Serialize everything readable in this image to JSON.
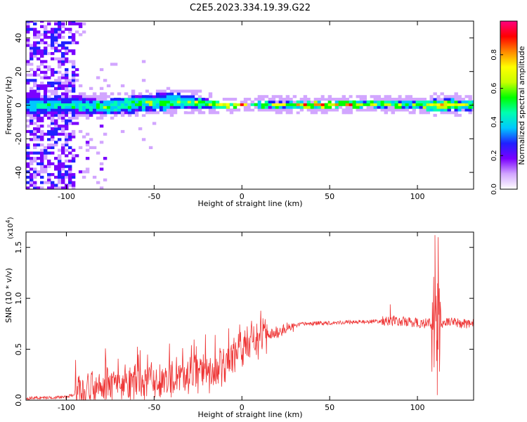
{
  "title": "C2E5.2023.334.19.39.G22",
  "chart_data": [
    {
      "type": "heatmap",
      "xlabel": "Height of straight line (km)",
      "ylabel": "Frequency (Hz)",
      "xlim": [
        -123,
        132
      ],
      "ylim": [
        -50,
        50
      ],
      "xticks": [
        -100,
        -50,
        0,
        50,
        100
      ],
      "xtick_labels": [
        "-100",
        "-50",
        "0",
        "50",
        "100"
      ],
      "yticks": [
        -40,
        -20,
        0,
        20,
        40
      ],
      "ytick_labels": [
        "-40",
        "-20",
        "0",
        "20",
        "40"
      ],
      "colorbar": {
        "label": "Normalized spectral amplitude",
        "range": [
          0,
          1
        ],
        "ticks": [
          0.0,
          0.2,
          0.4,
          0.6,
          0.8
        ],
        "tick_labels": [
          "0.0",
          "0.2",
          "0.4",
          "0.6",
          "0.8"
        ],
        "colors": [
          "#ffffff",
          "#d2a6ff",
          "#7a00ff",
          "#2020ff",
          "#00c8ff",
          "#00ffb0",
          "#00ff00",
          "#c8ff00",
          "#ffff00",
          "#ff8800",
          "#ff0000",
          "#ff0080"
        ]
      },
      "grid": false,
      "ridge": {
        "description_points_x": [
          -95,
          -80,
          -60,
          -45,
          -35,
          -20,
          -10,
          0,
          5,
          10,
          40,
          80,
          100,
          110,
          132
        ],
        "center_hz": [
          0,
          -1,
          1,
          2,
          2,
          1,
          0,
          0,
          0,
          0,
          0,
          1,
          0,
          0,
          0
        ],
        "halfwidth_hz": [
          5,
          4.5,
          4.5,
          4.5,
          4.5,
          3,
          1.5,
          1,
          1,
          2,
          2,
          2,
          2,
          4,
          2.5
        ],
        "peak_amplitude": [
          0.45,
          0.5,
          0.55,
          0.6,
          0.55,
          0.6,
          0.85,
          0.9,
          0.55,
          0.55,
          0.8,
          0.7,
          0.6,
          0.8,
          0.65
        ]
      }
    },
    {
      "type": "line",
      "xlabel": "Height of straight line (km)",
      "ylabel": "SNR (10 * v/v)",
      "y_multiplier": "(x10",
      "y_multiplier_exp": "4",
      "y_multiplier_close": ")",
      "xlim": [
        -123,
        132
      ],
      "ylim": [
        0,
        1.65
      ],
      "xticks": [
        -100,
        -50,
        0,
        50,
        100
      ],
      "xtick_labels": [
        "-100",
        "-50",
        "0",
        "50",
        "100"
      ],
      "yticks": [
        0.0,
        0.5,
        1.0,
        1.5
      ],
      "ytick_labels": [
        "0.0",
        "0.5",
        "1.0",
        "1.5"
      ],
      "color": "#ee3333",
      "grid": false,
      "trend": {
        "x": [
          -123,
          -100,
          -95,
          -80,
          -60,
          -40,
          -20,
          -10,
          0,
          10,
          25,
          35,
          50,
          70,
          85,
          100,
          108,
          113,
          120,
          132
        ],
        "y": [
          0.02,
          0.03,
          0.06,
          0.12,
          0.16,
          0.2,
          0.26,
          0.35,
          0.5,
          0.6,
          0.7,
          0.75,
          0.76,
          0.77,
          0.78,
          0.76,
          0.75,
          0.76,
          0.76,
          0.75
        ]
      },
      "spikes": [
        {
          "x": 110.0,
          "y": 1.62
        },
        {
          "x": 111.3,
          "y": 0.05
        },
        {
          "x": 111.8,
          "y": 1.6
        },
        {
          "x": 112.6,
          "y": 0.28
        },
        {
          "x": 84.5,
          "y": 0.94
        }
      ]
    }
  ]
}
